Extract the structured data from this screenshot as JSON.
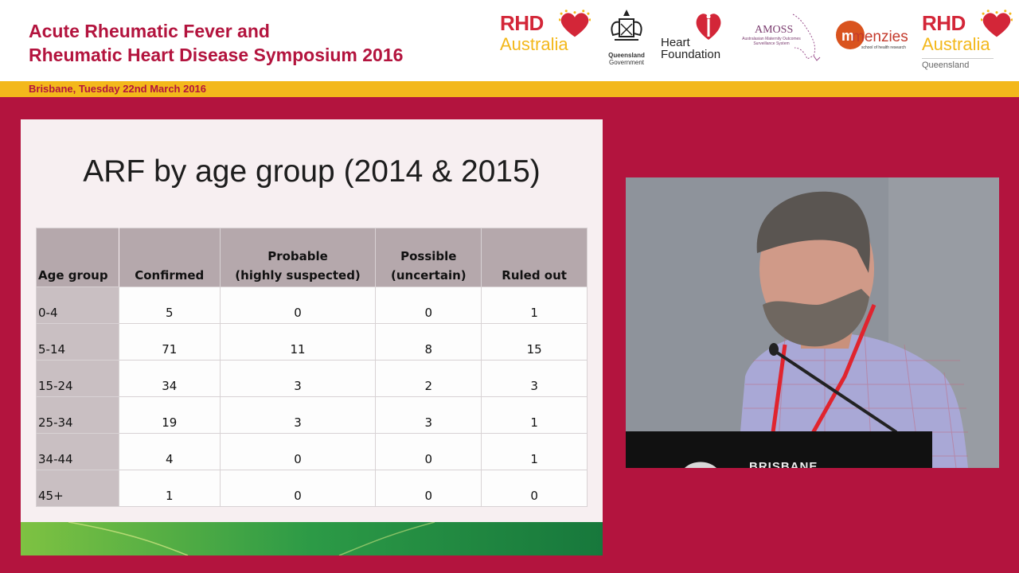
{
  "header": {
    "title_line1": "Acute Rheumatic Fever and",
    "title_line2": "Rheumatic Heart Disease Symposium 2016",
    "date": "Brisbane, Tuesday 22nd March 2016"
  },
  "logos": {
    "rhd1_top": "RHD",
    "rhd1_bottom": "Australia",
    "qld_line1": "Queensland",
    "qld_line2": "Government",
    "heart_line1": "Heart",
    "heart_line2": "Foundation",
    "amoss": "AMOSS",
    "amoss_sub": "Australasian Maternity Outcomes Surveillance System",
    "menzies": "menzies",
    "menzies_sub": "school of health research",
    "rhd2_top": "RHD",
    "rhd2_bottom": "Australia",
    "rhd2_sub": "Queensland"
  },
  "slide": {
    "title": "ARF by age group (2014 & 2015)",
    "table": {
      "headers": [
        [
          "Age group"
        ],
        [
          "Confirmed"
        ],
        [
          "Probable",
          "(highly suspected)"
        ],
        [
          "Possible",
          "(uncertain)"
        ],
        [
          "Ruled out"
        ]
      ],
      "rows": [
        [
          "0-4",
          "5",
          "0",
          "0",
          "1"
        ],
        [
          "5-14",
          "71",
          "11",
          "8",
          "15"
        ],
        [
          "15-24",
          "34",
          "3",
          "2",
          "3"
        ],
        [
          "25-34",
          "19",
          "3",
          "3",
          "1"
        ],
        [
          "34-44",
          "4",
          "0",
          "0",
          "1"
        ],
        [
          "45+",
          "1",
          "0",
          "0",
          "0"
        ]
      ]
    }
  },
  "video": {
    "podium_text": "BRISBANE"
  },
  "colors": {
    "brand": "#b3143e",
    "accent": "#f3b81b",
    "rhd_red": "#d32638"
  }
}
